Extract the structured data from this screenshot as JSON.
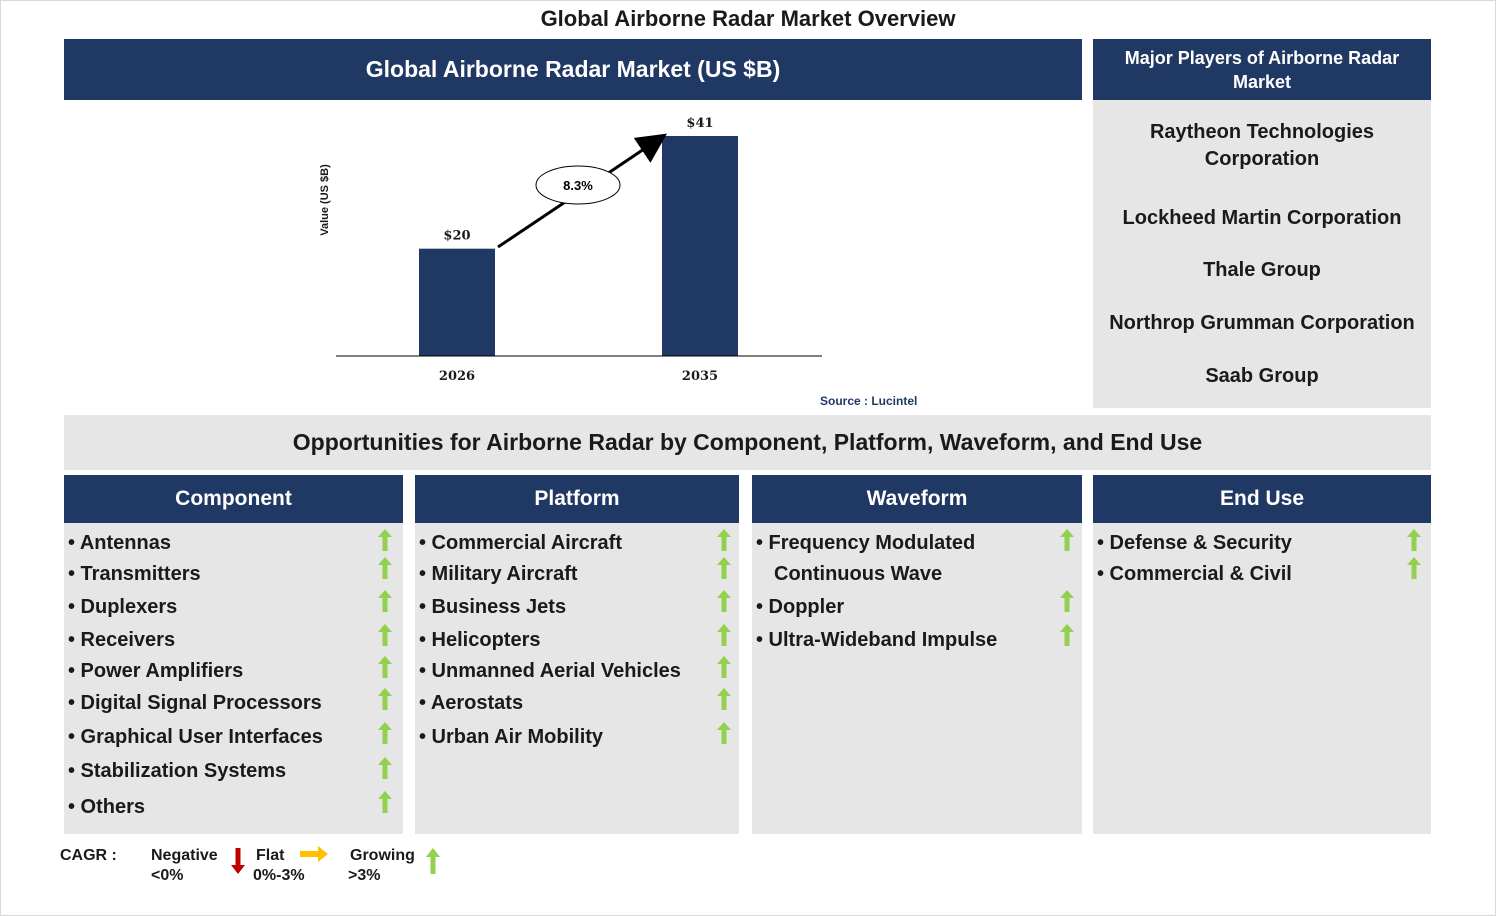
{
  "title": "Global Airborne Radar Market Overview",
  "chart_header": "Global Airborne Radar Market (US $B)",
  "chart_data": {
    "type": "bar",
    "categories": [
      "2026",
      "2035"
    ],
    "values": [
      20,
      41
    ],
    "value_labels": [
      "$20",
      "$41"
    ],
    "ylabel": "Value (US $B)",
    "xlabel": "",
    "ylim": [
      0,
      41
    ],
    "grid": false,
    "bar_color": "#1f3864",
    "annotation": "8.3%",
    "source": "Source : Lucintel"
  },
  "players": {
    "header": "Major Players of Airborne Radar Market",
    "items": [
      "Raytheon Technologies Corporation",
      "Lockheed Martin Corporation",
      "Thale Group",
      "Northrop Grumman Corporation",
      "Saab Group"
    ]
  },
  "opportunities_title": "Opportunities for Airborne Radar by Component, Platform, Waveform, and End Use",
  "segments": [
    {
      "header": "Component",
      "items": [
        "• Antennas",
        "• Transmitters",
        "• Duplexers",
        "• Receivers",
        "• Power Amplifiers",
        "• Digital Signal Processors",
        "• Graphical User Interfaces",
        "• Stabilization Systems",
        "• Others"
      ],
      "trend": "growing"
    },
    {
      "header": "Platform",
      "items": [
        "• Commercial Aircraft",
        "• Military Aircraft",
        "• Business Jets",
        "• Helicopters",
        "• Unmanned Aerial Vehicles",
        "• Aerostats",
        "• Urban Air Mobility"
      ],
      "trend": "growing"
    },
    {
      "header": "Waveform",
      "items": [
        "• Frequency Modulated",
        "Continuous Wave",
        "• Doppler",
        "• Ultra-Wideband Impulse"
      ],
      "trend": "growing"
    },
    {
      "header": "End Use",
      "items": [
        "• Defense & Security",
        "• Commercial & Civil"
      ],
      "trend": "growing"
    }
  ],
  "legend": {
    "cagr_label": "CAGR :",
    "negative": {
      "label": "Negative",
      "range": "<0%",
      "color": "#c00000",
      "icon": "down-arrow-icon"
    },
    "flat": {
      "label": "Flat",
      "range": "0%-3%",
      "color": "#ffc000",
      "icon": "right-arrow-icon"
    },
    "growing": {
      "label": "Growing",
      "range": ">3%",
      "color": "#92d050",
      "icon": "up-arrow-icon"
    }
  },
  "colors": {
    "navy": "#1f3864",
    "grey": "#e7e6e6",
    "growing": "#92d050"
  }
}
